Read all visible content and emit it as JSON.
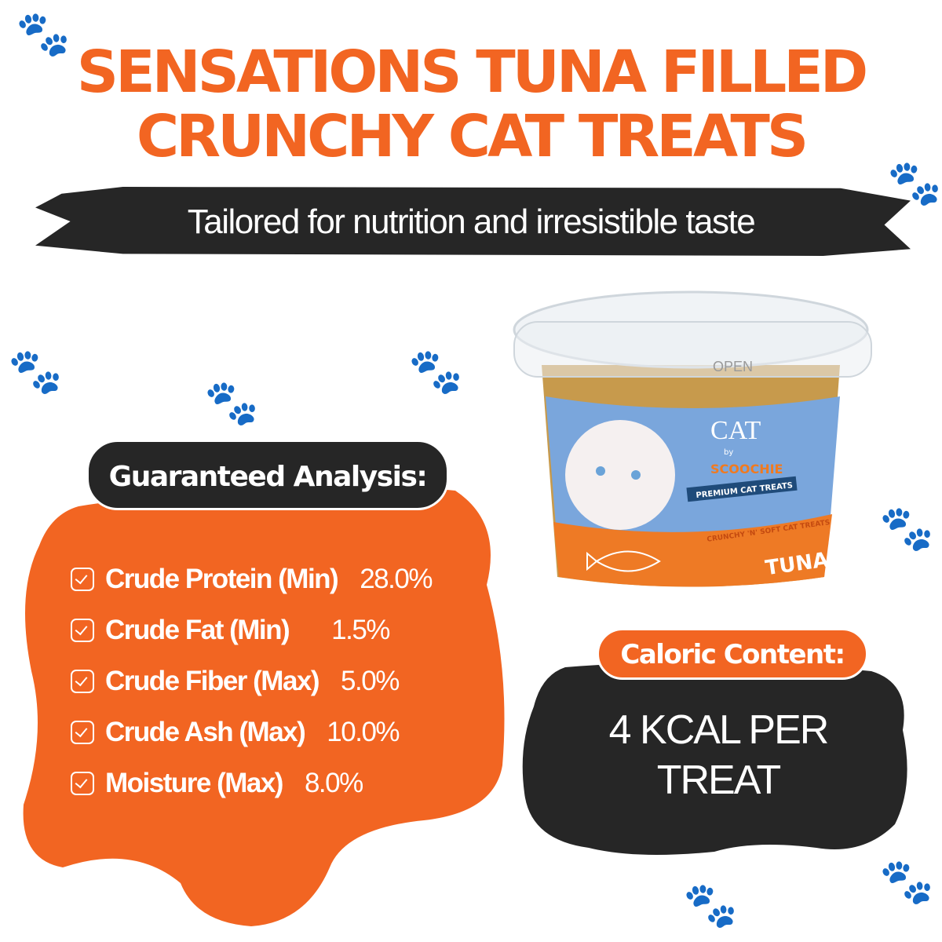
{
  "header": {
    "title_line1": "SENSATIONS TUNA FILLED",
    "title_line2": "CRUNCHY CAT TREATS",
    "subtitle": "Tailored for nutrition and irresistible taste"
  },
  "analysis": {
    "heading": "Guaranteed Analysis:",
    "items": [
      {
        "label": "Crude Protein (Min)",
        "value": "28.0%"
      },
      {
        "label": "Crude Fat (Min)",
        "value": "1.5%"
      },
      {
        "label": "Crude Fiber (Max)",
        "value": "5.0%"
      },
      {
        "label": "Crude Ash (Max)",
        "value": "10.0%"
      },
      {
        "label": "Moisture (Max)",
        "value": "8.0%"
      }
    ]
  },
  "calories": {
    "heading": "Caloric Content:",
    "line1": "4 KCAL PER",
    "line2": "TREAT"
  },
  "product": {
    "lid_text": "OPEN",
    "brand": "CAT",
    "by": "by",
    "maker": "SCOOCHIE",
    "ribbon": "PREMIUM CAT TREATS",
    "tagline": "CRUNCHY 'N' SOFT CAT TREATS",
    "flavor": "TUNA"
  },
  "colors": {
    "orange": "#f26522",
    "dark": "#262626",
    "label_blue": "#6f9fd8"
  }
}
